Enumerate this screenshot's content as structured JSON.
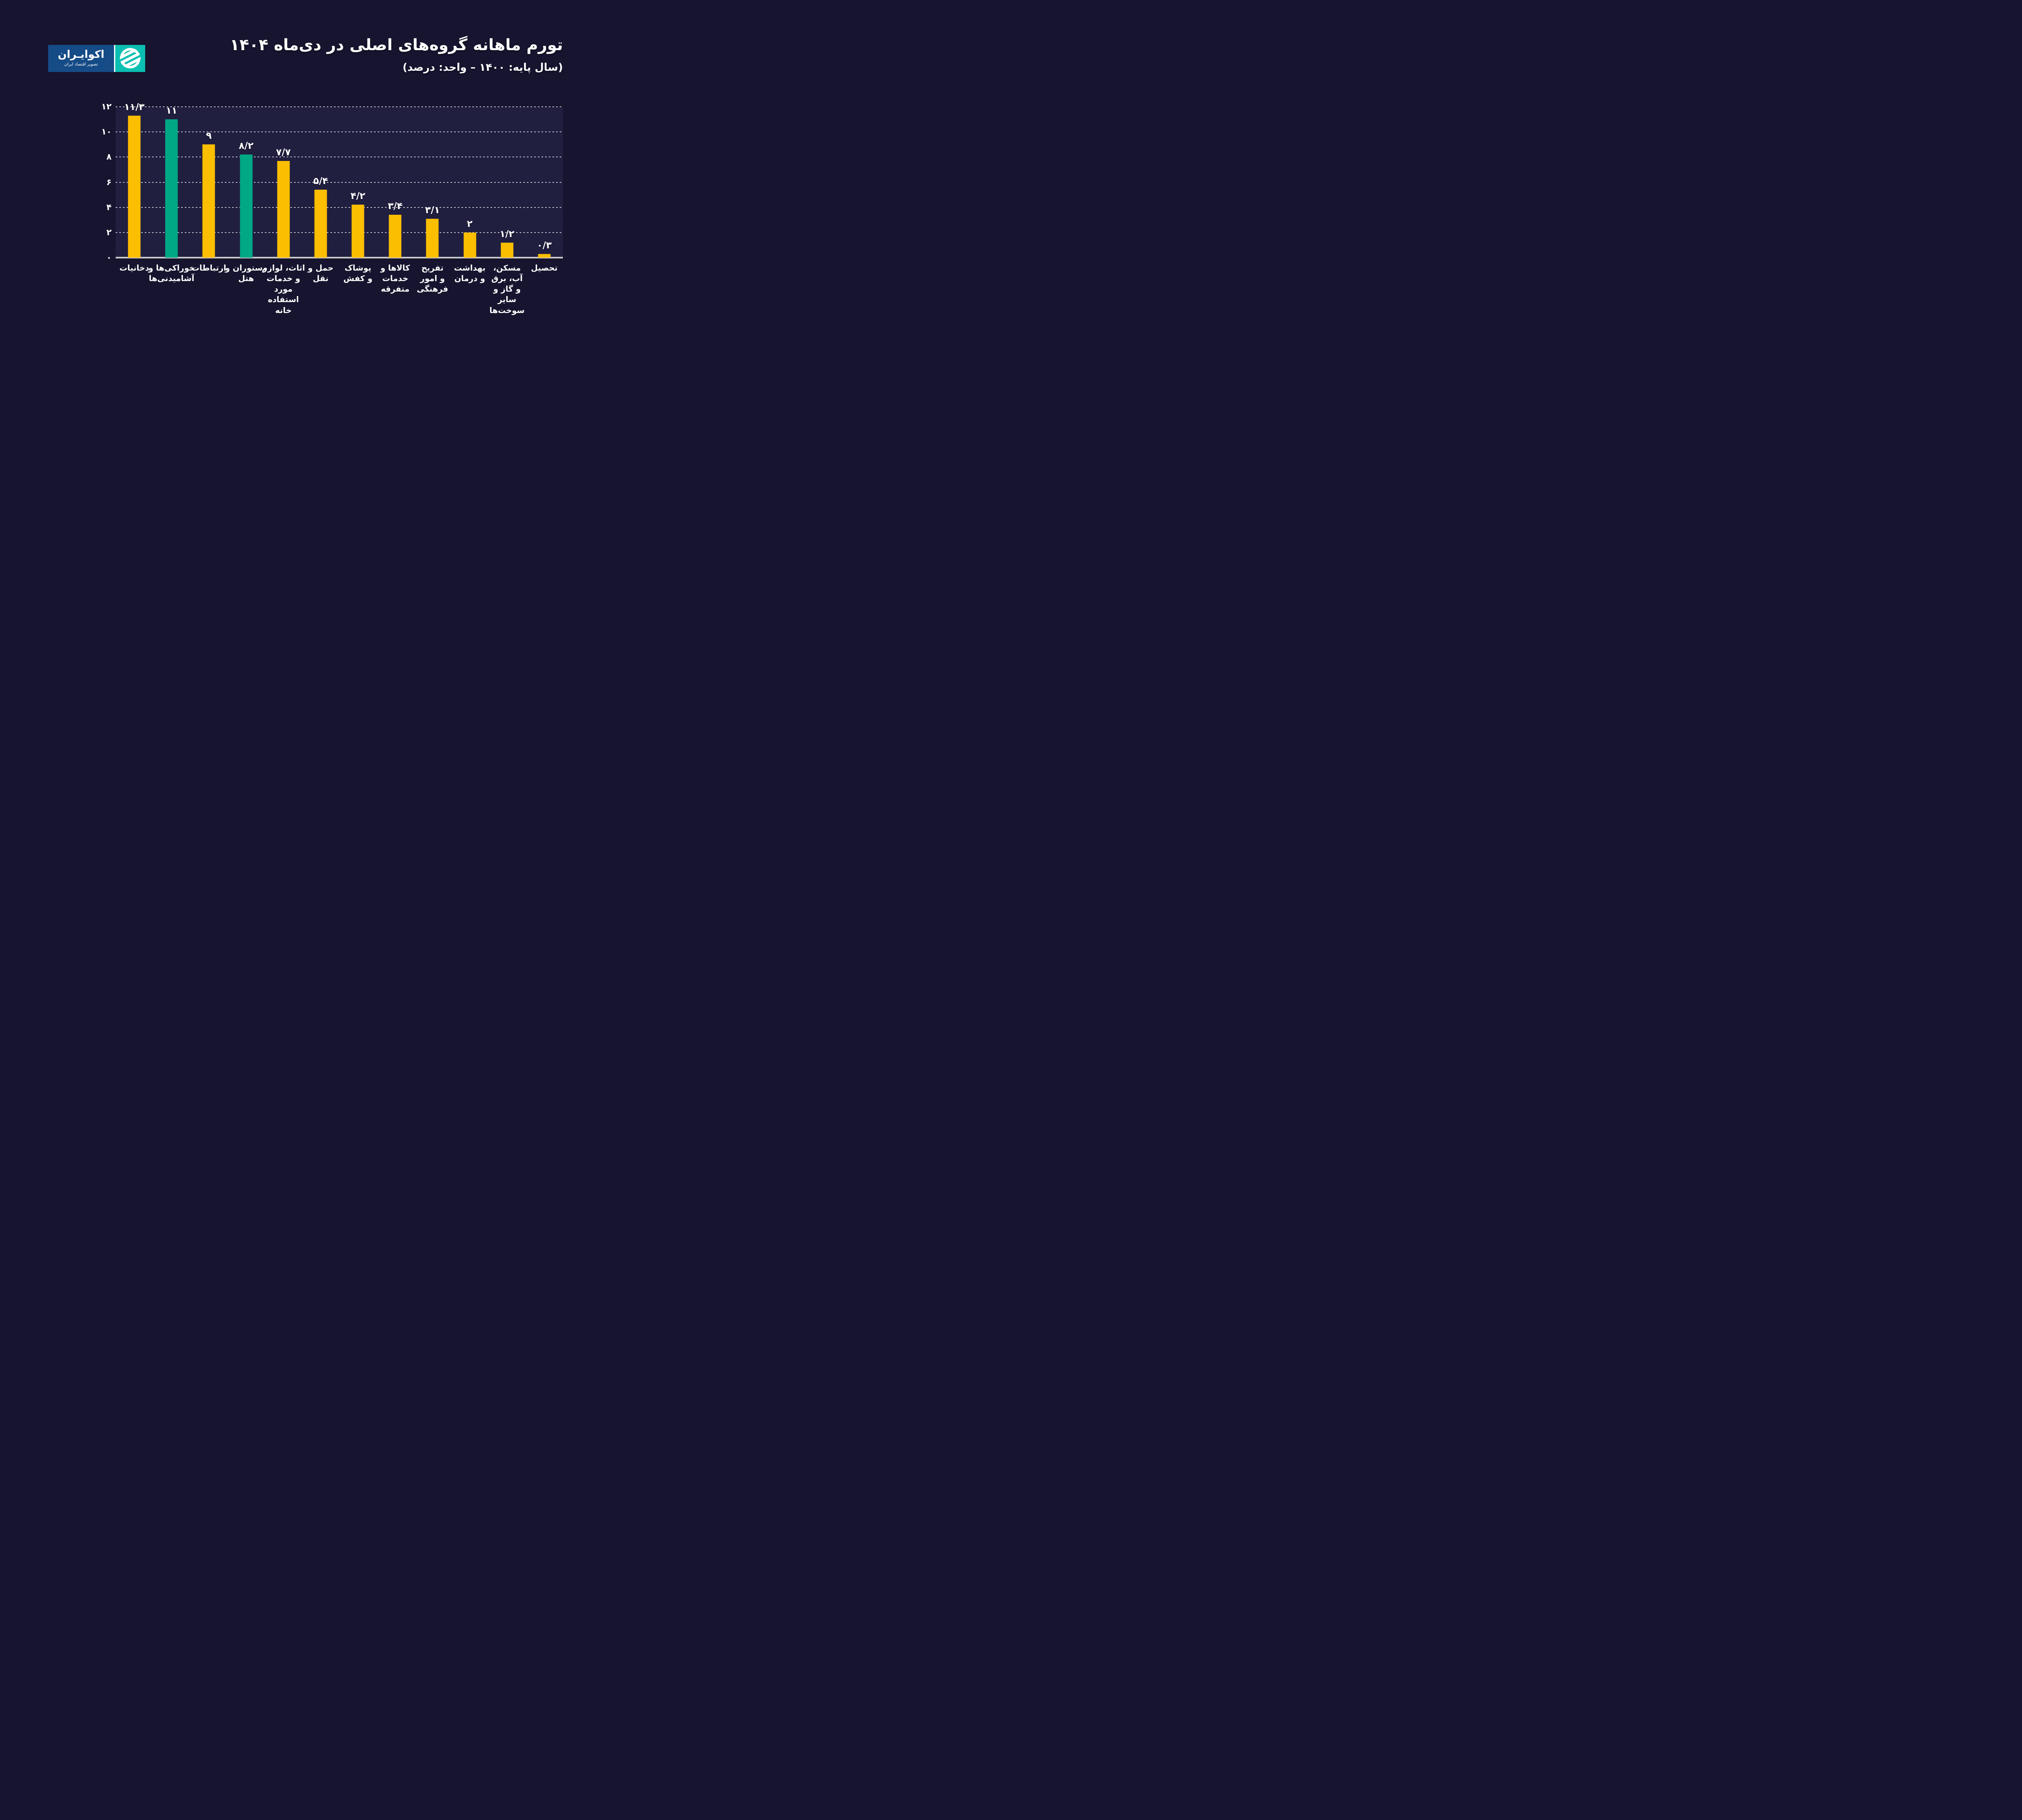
{
  "page": {
    "background": "#16142E",
    "text_color": "#FFFFFF"
  },
  "logo": {
    "brand": "اکوایـران",
    "tagline": "تصویر اقتصاد ایران",
    "blue": "#154B87",
    "teal": "#0BBFB2",
    "emblem_icon": "striped-globe-leaf"
  },
  "header": {
    "title": "تورم ماهانه گروه‌های اصلی در دی‌ماه ۱۴۰۴",
    "subtitle": "(سال پایه: ۱۴۰۰ – واحد: درصد)"
  },
  "chart_data": {
    "type": "bar",
    "title": "تورم ماهانه گروه‌های اصلی در دی‌ماه ۱۴۰۴",
    "subtitle": "(سال پایه: ۱۴۰۰ – واحد: درصد)",
    "unit": "درصد",
    "base_year": "۱۴۰۰",
    "ylim": [
      0,
      12
    ],
    "grid": "horizontal dashed at ticks",
    "legend": "none",
    "colors": {
      "bar_default": "#FCBE00",
      "bar_highlight": "#00A886",
      "plot_bg": "#211F40",
      "grid": "rgba(255,255,255,0.72)",
      "baseline": "#C9C9C9"
    },
    "yticks": [
      {
        "value": 0,
        "label": "۰"
      },
      {
        "value": 2,
        "label": "۲"
      },
      {
        "value": 4,
        "label": "۴"
      },
      {
        "value": 6,
        "label": "۶"
      },
      {
        "value": 8,
        "label": "۸"
      },
      {
        "value": 10,
        "label": "۱۰"
      },
      {
        "value": 12,
        "label": "۱۲"
      }
    ],
    "categories": [
      "دخانیات",
      "خوراکی‌ها و آشامیدنی‌ها",
      "ارتباطات",
      "رستوران و هتل",
      "اثاث، لوازم و خدمات مورد استفاده خانه",
      "حمل و نقل",
      "پوشاک و کفش",
      "کالاها و خدمات متفرقه",
      "تفریح و امور فرهنگی",
      "بهداشت و درمان",
      "مسکن، آب، برق و گاز و سایر سوخت‌ها",
      "تحصیل"
    ],
    "values": [
      11.3,
      11,
      9,
      8.2,
      7.7,
      5.4,
      4.2,
      3.4,
      3.1,
      2,
      1.2,
      0.3
    ],
    "items": [
      {
        "label": "دخانیات",
        "label_lines": [
          "دخانیات"
        ],
        "value": 11.3,
        "display": "۱۱/۳",
        "color": "yellow"
      },
      {
        "label": "خوراکی‌ها و آشامیدنی‌ها",
        "label_lines": [
          "خوراکی‌ها و",
          "آشامیدنی‌ها"
        ],
        "value": 11,
        "display": "۱۱",
        "color": "green"
      },
      {
        "label": "ارتباطات",
        "label_lines": [
          "ارتباطات"
        ],
        "value": 9,
        "display": "۹",
        "color": "yellow"
      },
      {
        "label": "رستوران و هتل",
        "label_lines": [
          "رستوران و",
          "هتل"
        ],
        "value": 8.2,
        "display": "۸/۲",
        "color": "green"
      },
      {
        "label": "اثاث، لوازم و خدمات مورد استفاده خانه",
        "label_lines": [
          "اثاث، لوازم",
          "و خدمات",
          "مورد",
          "استفاده",
          "خانه"
        ],
        "value": 7.7,
        "display": "۷/۷",
        "color": "yellow"
      },
      {
        "label": "حمل و نقل",
        "label_lines": [
          "حمل و",
          "نقل"
        ],
        "value": 5.4,
        "display": "۵/۴",
        "color": "yellow"
      },
      {
        "label": "پوشاک و کفش",
        "label_lines": [
          "پوشاک",
          "و کفش"
        ],
        "value": 4.2,
        "display": "۴/۲",
        "color": "yellow"
      },
      {
        "label": "کالاها و خدمات متفرقه",
        "label_lines": [
          "کالاها و",
          "خدمات",
          "متفرقه"
        ],
        "value": 3.4,
        "display": "۳/۴",
        "color": "yellow"
      },
      {
        "label": "تفریح و امور فرهنگی",
        "label_lines": [
          "تفریح",
          "و امور",
          "فرهنگی"
        ],
        "value": 3.1,
        "display": "۳/۱",
        "color": "yellow"
      },
      {
        "label": "بهداشت و درمان",
        "label_lines": [
          "بهداشت",
          "و درمان"
        ],
        "value": 2,
        "display": "۲",
        "color": "yellow"
      },
      {
        "label": "مسکن، آب، برق و گاز و سایر سوخت‌ها",
        "label_lines": [
          "مسکن،",
          "آب، برق",
          "و گاز و",
          "سایر",
          "سوخت‌ها"
        ],
        "value": 1.2,
        "display": "۱/۲",
        "color": "yellow"
      },
      {
        "label": "تحصیل",
        "label_lines": [
          "تحصیل"
        ],
        "value": 0.3,
        "display": "۰/۳",
        "color": "yellow"
      }
    ]
  }
}
